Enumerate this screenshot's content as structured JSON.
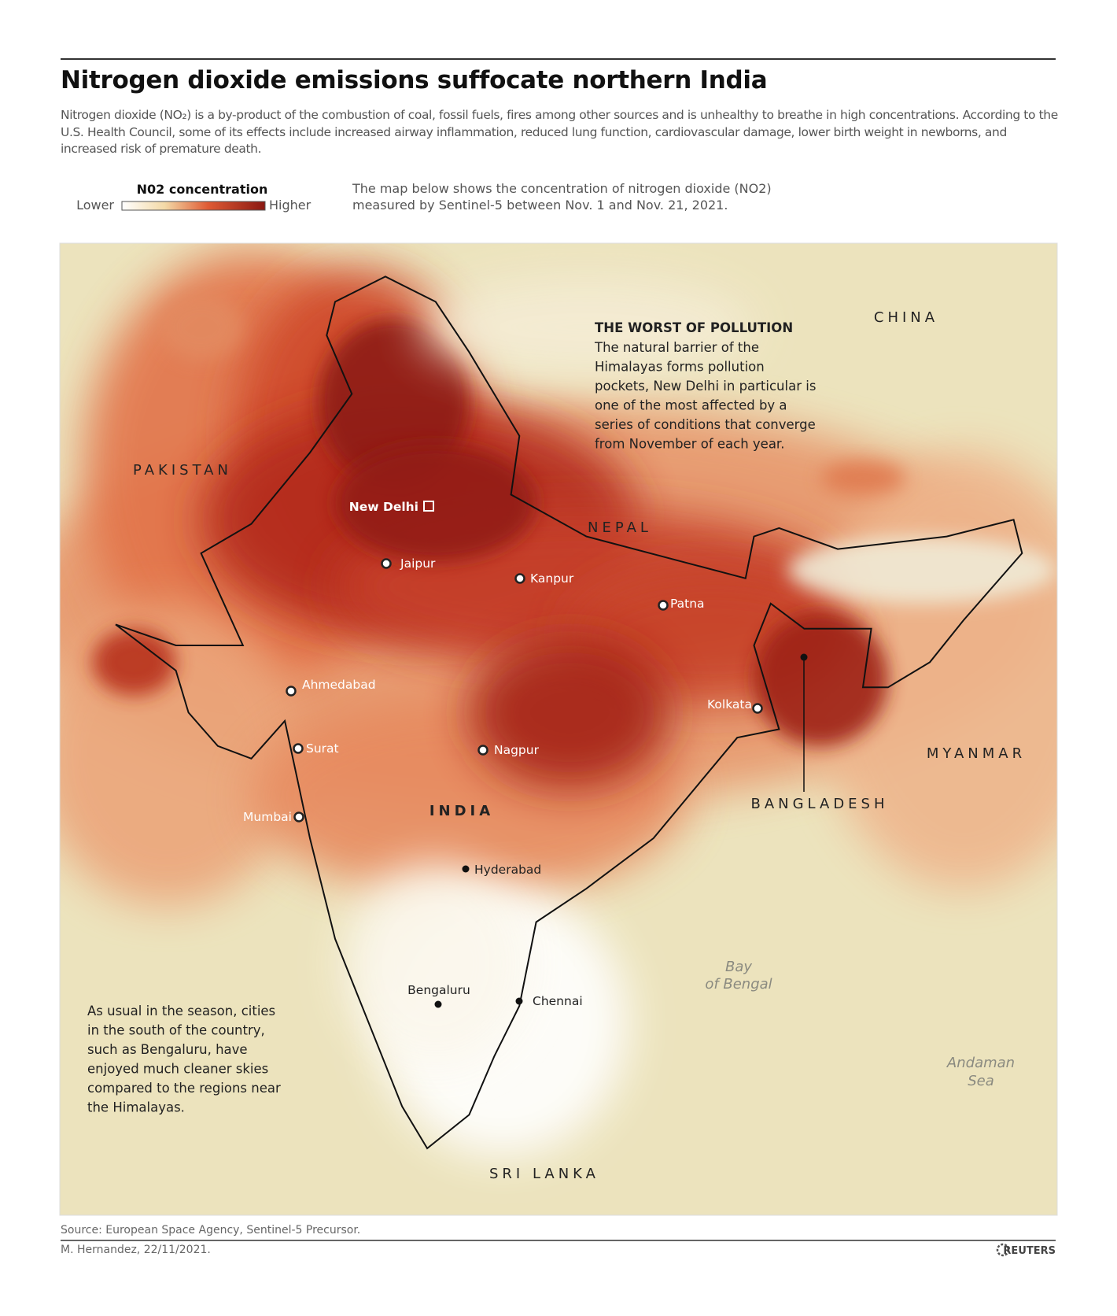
{
  "header": {
    "title": "Nitrogen dioxide emissions suffocate northern India",
    "description": "Nitrogen dioxide (NO₂) is a by-product of the combustion of coal, fossil fuels, fires among other sources and is unhealthy to breathe in high concentrations. According to the U.S. Health Council, some of its effects include increased airway inflammation, reduced lung function, cardiovascular damage, lower birth weight in newborns, and increased risk of premature death."
  },
  "legend": {
    "title": "N02 concentration",
    "low": "Lower",
    "high": "Higher"
  },
  "map_note": [
    "The map below shows the concentration of nitrogen dioxide (NO2)",
    "measured by Sentinel-5 between Nov. 1 and Nov. 21, 2021."
  ],
  "map": {
    "countries": [
      "CHINA",
      "PAKISTAN",
      "NEPAL",
      "MYANMAR",
      "INDIA",
      "BANGLADESH",
      "SRI LANKA"
    ],
    "cities": [
      "New Delhi",
      "Jaipur",
      "Kanpur",
      "Patna",
      "Ahmedabad",
      "Kolkata",
      "Surat",
      "Nagpur",
      "Mumbai",
      "Hyderabad",
      "Bengaluru",
      "Chennai"
    ],
    "seas": [
      [
        "Bay",
        "of Bengal"
      ],
      [
        "Andaman",
        "Sea"
      ]
    ],
    "annotations": [
      {
        "title": "THE WORST OF POLLUTION",
        "lines": [
          "The natural barrier of the",
          "Himalayas forms pollution",
          "pockets, New Delhi in particular is",
          "one of the most affected by a",
          "series of conditions that converge",
          "from November of each year."
        ]
      },
      {
        "lines": [
          "As usual in the season, cities",
          "in the south of the country,",
          "such as Bengaluru, have",
          "enjoyed much cleaner skies",
          "compared to the regions near",
          "the Himalayas."
        ]
      }
    ]
  },
  "footer": {
    "source": "Source: European Space Agency, Sentinel-5 Precursor.",
    "credit": "M. Hernandez, 22/11/2021.",
    "logo": "REUTERS"
  }
}
